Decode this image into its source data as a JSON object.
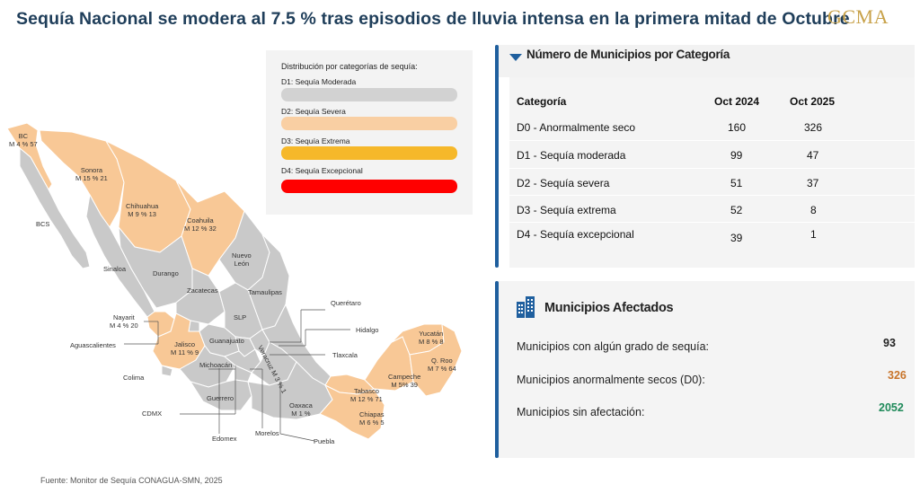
{
  "title": "Sequía Nacional se modera al 7.5 % tras episodios de lluvia intensa en la primera mitad de Octubre",
  "logo": "GCMA",
  "colors": {
    "d0_orange": "#f8c896",
    "d1_gray": "#cfcfcf",
    "d2_peach": "#f9cfa3",
    "d3_amber": "#f6b82a",
    "d4_red": "#ff0000",
    "map_gray": "#c9c9c9",
    "accent_blue": "#1f5f9e",
    "title_navy": "#1f3e5a",
    "green": "#1f8a5a",
    "orange_text": "#c8742a"
  },
  "legend": {
    "title": "Distribución por categorías de sequía:",
    "items": [
      {
        "label": "D1: Sequía Moderada",
        "color": "#d2d2d2"
      },
      {
        "label": "D2: Sequía Severa",
        "color": "#f9cfa3"
      },
      {
        "label": "D3: Sequía Extrema",
        "color": "#f6b82a"
      },
      {
        "label": "D4: Sequía Excepcional",
        "color": "#ff0000"
      }
    ]
  },
  "map": {
    "labels": {
      "bc": "BC\nM 4 % 57",
      "bcs": "BCS",
      "sonora": "Sonora\nM 15 % 21",
      "chihuahua": "Chihuahua\nM 9 % 13",
      "coahuila": "Coahuila\nM 12 % 32",
      "nuevo_leon": "Nuevo\nLeón",
      "sinaloa": "Sinaloa",
      "durango": "Durango",
      "zacatecas": "Zacatecas",
      "tamaulipas": "Tamaulipas",
      "slp": "SLP",
      "queretaro": "Querétaro",
      "nayarit": "Nayarit\nM 4 % 20",
      "aguascalientes": "Aguascalientes",
      "jalisco": "Jalisco\nM 11 % 9",
      "guanajuato": "Guanajuato",
      "veracruz": "Veracruz M 3 % 1",
      "hidalgo": "Hidalgo",
      "tlaxcala": "Tlaxcala",
      "colima": "Colima",
      "michoacan": "Michoacán",
      "guerrero": "Guerrero",
      "cdmx": "CDMX",
      "oaxaca": "Oaxaca\nM 1 %",
      "edomex": "Edomex",
      "morelos": "Morelos",
      "puebla": "Puebla",
      "yucatan": "Yucatán\nM 8 % 8",
      "qroo": "Q. Roo\nM 7 % 64",
      "campeche": "Campeche\nM 5% 39",
      "tabasco": "Tabasco\nM 12 % 71",
      "chiapas": "Chiapas\nM 6 % 5"
    }
  },
  "source": "Fuente: Monitor de Sequía CONAGUA-SMN, 2025",
  "table": {
    "title": "Número de Municipios por Categoría",
    "headers": [
      "Categoría",
      "Oct 2024",
      "Oct 2025"
    ],
    "rows": [
      [
        "D0 - Anormalmente seco",
        "160",
        "326"
      ],
      [
        "D1 - Sequía moderada",
        "99",
        "47"
      ],
      [
        "D2 - Sequía severa",
        "51",
        "37"
      ],
      [
        "D3 - Sequía extrema",
        "52",
        "8"
      ],
      [
        "D4 - Sequía excepcional",
        "39",
        "1"
      ]
    ]
  },
  "stats": {
    "title": "Municipios Afectados",
    "items": [
      {
        "label": "Municipios con algún grado de sequía:",
        "value": "93",
        "color": "#222222"
      },
      {
        "label": "Municipios anormalmente secos (D0):",
        "value": "326",
        "color": "#c8742a"
      },
      {
        "label": "Municipios sin afectación:",
        "value": "2052",
        "color": "#1f8a5a"
      }
    ]
  }
}
